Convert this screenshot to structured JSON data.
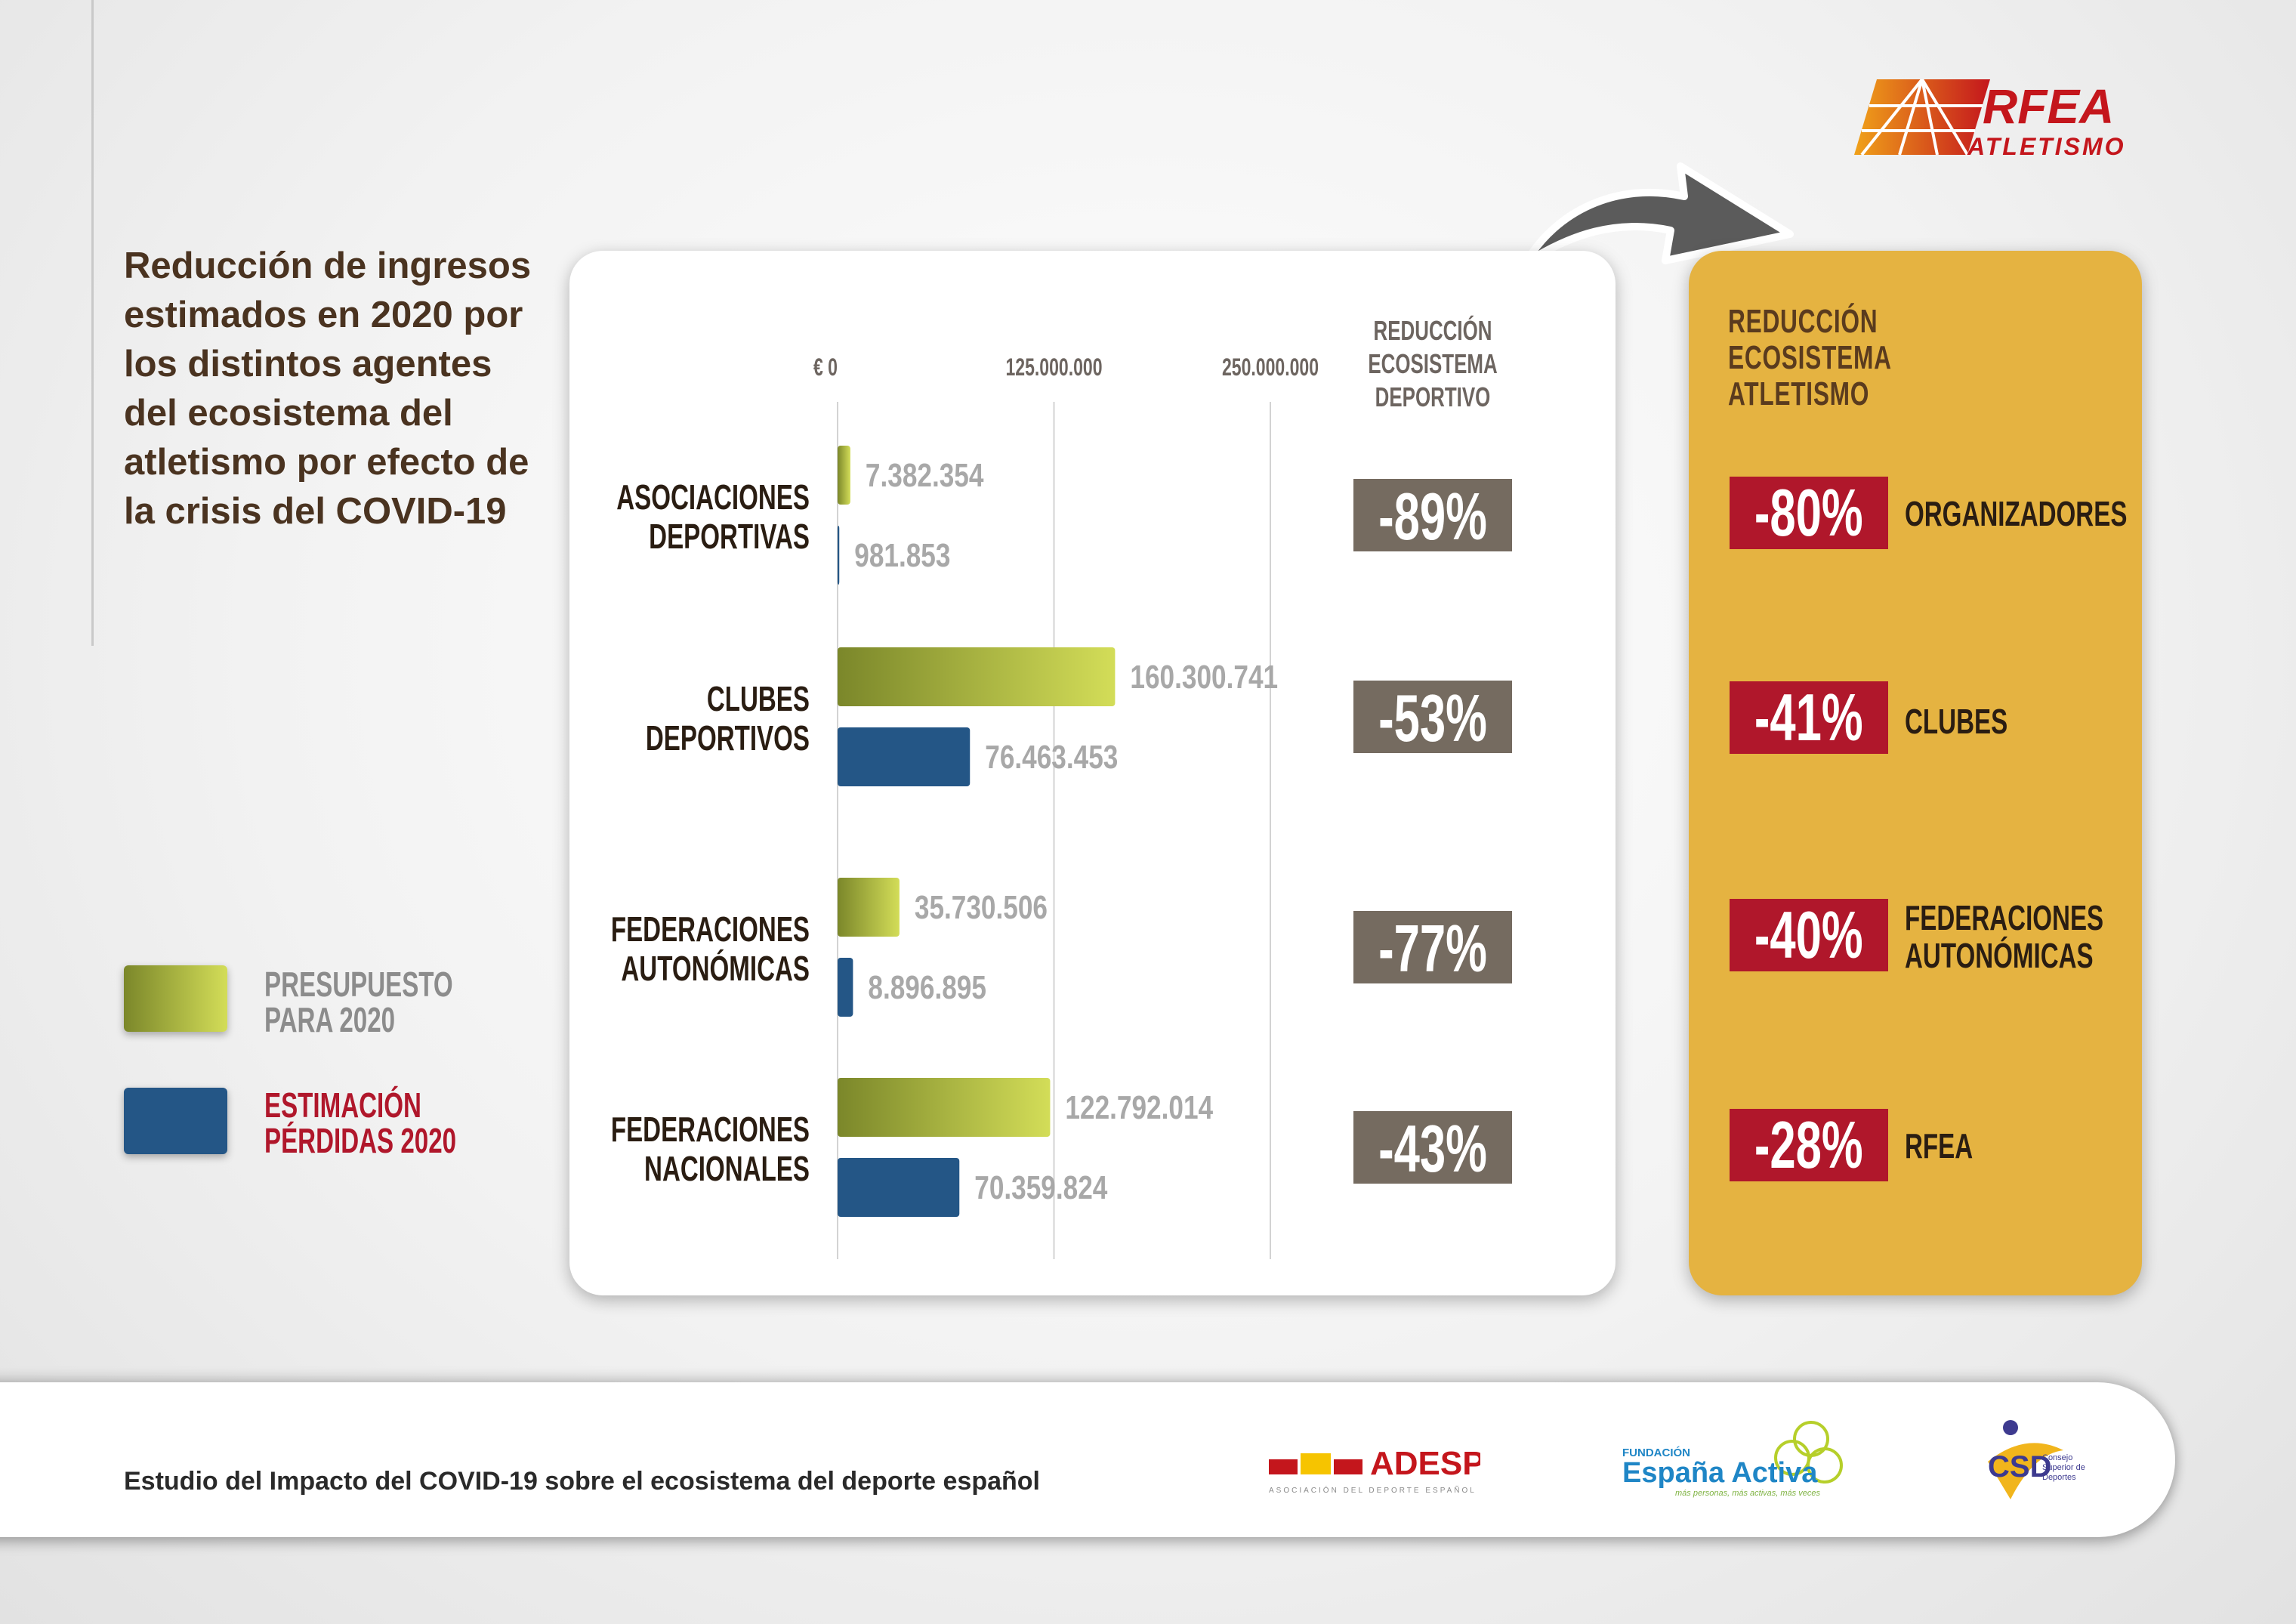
{
  "title": "Reducción de ingresos estimados en 2020 por los distintos agentes del ecosistema del atletismo por efecto de la crisis del COVID-19",
  "legend": {
    "budget_label_1": "PRESUPUESTO",
    "budget_label_2": "PARA 2020",
    "loss_label_1": "ESTIMACIÓN",
    "loss_label_2": "PÉRDIDAS 2020"
  },
  "sport_header": [
    "REDUCCIÓN",
    "ECOSISTEMA",
    "DEPORTIVO"
  ],
  "rfea_header": [
    "REDUCCIÓN",
    "ECOSISTEMA",
    "ATLETISMO"
  ],
  "rfea_rows": [
    {
      "pct": "-80%",
      "label_1": "ORGANIZADORES",
      "label_2": ""
    },
    {
      "pct": "-41%",
      "label_1": "CLUBES",
      "label_2": ""
    },
    {
      "pct": "-40%",
      "label_1": "FEDERACIONES",
      "label_2": "AUTONÓMICAS"
    },
    {
      "pct": "-28%",
      "label_1": "RFEA",
      "label_2": ""
    }
  ],
  "footer": {
    "study": "Estudio del Impacto del COVID-19 sobre el ecosistema del deporte español",
    "adesp": "ADESP",
    "adesp_sub": "ASOCIACIÓN DEL DEPORTE ESPAÑOL",
    "fundacion": "FUNDACIÓN",
    "espana_activa": "España Activa",
    "espana_sub": "más personas, más activas, más veces",
    "csd": "CSD",
    "csd_sub_1": "Consejo",
    "csd_sub_2": "Superior de",
    "csd_sub_3": "Deportes"
  },
  "logo": {
    "rfea": "RFEA",
    "atletismo": "ATLETISMO"
  },
  "colors": {
    "green_dark": "#7d8a2a",
    "green_light": "#d2dc56",
    "blue": "#245686",
    "grey_box": "#756b60",
    "red": "#b0172b",
    "gold": "#e5b341"
  },
  "chart_data": {
    "type": "bar",
    "orientation": "horizontal",
    "categories": [
      [
        "ASOCIACIONES",
        "DEPORTIVAS"
      ],
      [
        "CLUBES",
        "DEPORTIVOS"
      ],
      [
        "FEDERACIONES",
        "AUTONÓMICAS"
      ],
      [
        "FEDERACIONES",
        "NACIONALES"
      ]
    ],
    "series": [
      {
        "name": "PRESUPUESTO PARA 2020",
        "values": [
          7382354,
          160300741,
          35730506,
          122792014
        ],
        "labels": [
          "7.382.354",
          "160.300.741",
          "35.730.506",
          "122.792.014"
        ]
      },
      {
        "name": "ESTIMACIÓN PÉRDIDAS 2020",
        "values": [
          981853,
          76463453,
          8896895,
          70359824
        ],
        "labels": [
          "981.853",
          "76.463.453",
          "8.896.895",
          "70.359.824"
        ]
      }
    ],
    "reduction": [
      "-89%",
      "-53%",
      "-77%",
      "-43%"
    ],
    "xticks": [
      0,
      125000000,
      250000000
    ],
    "xtick_labels": [
      "€ 0",
      "125.000.000",
      "250.000.000"
    ],
    "xlim": [
      0,
      250000000
    ]
  }
}
